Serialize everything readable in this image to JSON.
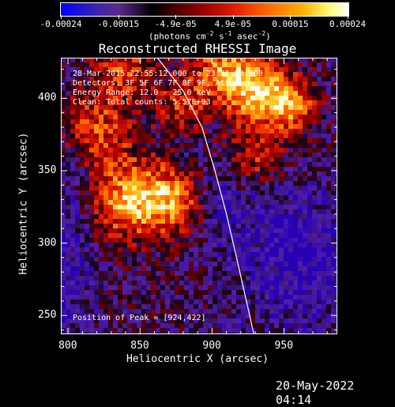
{
  "colorbar": {
    "tick_labels": [
      "-0.00024",
      "-0.00015",
      "-4.9e-05",
      "4.9e-05",
      "0.00015",
      "0.00024"
    ],
    "units": "(photons cm",
    "units_exp1": "-2",
    "units_mid": " s",
    "units_exp2": "-1",
    "units_end": " asec",
    "units_exp3": "-2",
    "units_close": ")"
  },
  "chart_data": {
    "type": "heatmap",
    "title": "Reconstructed RHESSI Image",
    "xlabel": "Heliocentric X (arcsec)",
    "ylabel": "Heliocentric Y (arcsec)",
    "xlim": [
      795,
      987
    ],
    "ylim": [
      237,
      428
    ],
    "xticks": [
      800,
      850,
      900,
      950
    ],
    "yticks": [
      250,
      300,
      350,
      400
    ],
    "xtick_labels": [
      "800",
      "850",
      "900",
      "950"
    ],
    "ytick_labels": [
      "250",
      "300",
      "350",
      "400"
    ],
    "limb_curve_x_y": [
      [
        862,
        428
      ],
      [
        880,
        405
      ],
      [
        893,
        380
      ],
      [
        902,
        350
      ],
      [
        910,
        320
      ],
      [
        917,
        290
      ],
      [
        925,
        255
      ],
      [
        929,
        237
      ]
    ],
    "peak": [
      924,
      422
    ],
    "colormap": "rhessi blue-black-red-yellow-white"
  },
  "annotations": {
    "time": "28-Mar-2015 22:55:12.000 to 23:01:00.000",
    "detectors": "Detectors: 3F 5F 6F 7F 8F 9F, Att 0",
    "energy": "Energy Range: 12.0 - 25.0 keV",
    "clean": "Clean:    Total counts: 5.57E+03",
    "peak_label": "Position of Peak = [924,422]"
  },
  "footer": {
    "date": "20-May-2022 04:14"
  }
}
